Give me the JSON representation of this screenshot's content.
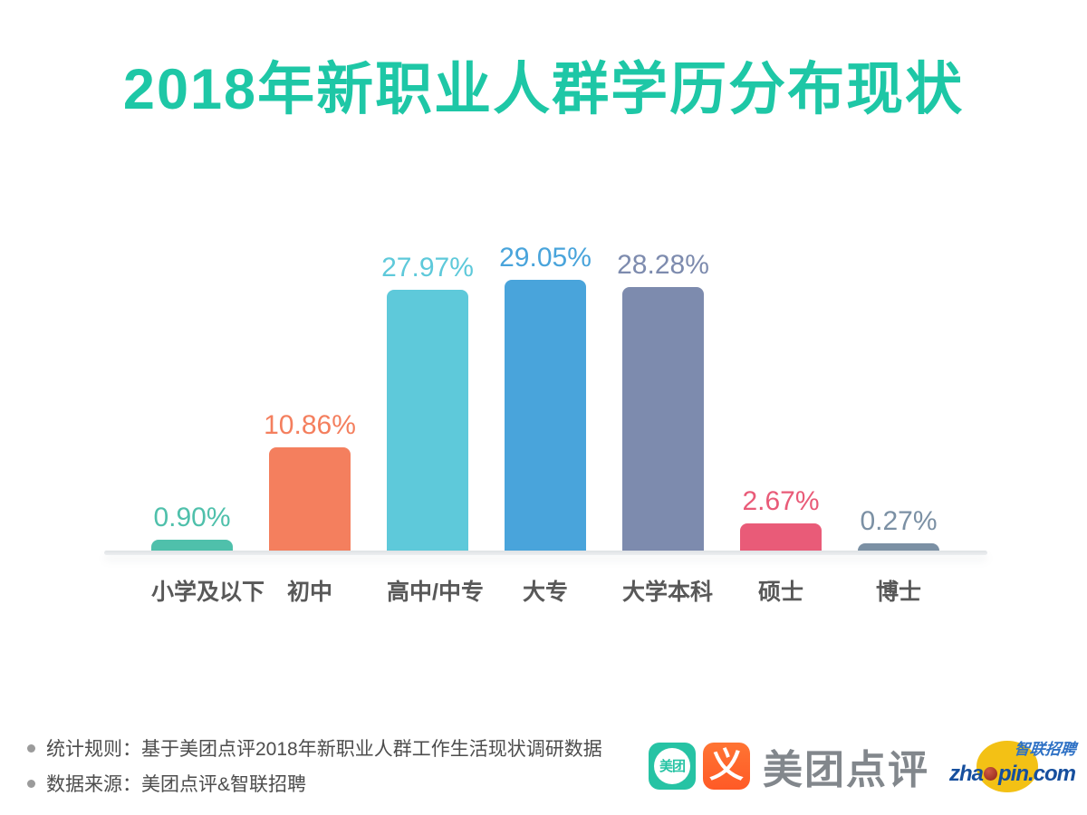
{
  "title": "2018年新职业人群学历分布现状",
  "chart_data": {
    "type": "bar",
    "title": "2018年新职业人群学历分布现状",
    "categories": [
      "小学及以下",
      "初中",
      "高中/中专",
      "大专",
      "大学本科",
      "硕士",
      "博士"
    ],
    "values": [
      0.9,
      10.86,
      27.97,
      29.05,
      28.28,
      2.67,
      0.27
    ],
    "value_labels": [
      "0.90%",
      "10.86%",
      "27.97%",
      "29.05%",
      "28.28%",
      "2.67%",
      "0.27%"
    ],
    "bar_colors": [
      "#4fc0ab",
      "#f47f5e",
      "#5ec9da",
      "#49a4db",
      "#7d8bae",
      "#e95b78",
      "#7b90a4"
    ],
    "xlabel": "",
    "ylabel": "",
    "ylim": [
      0,
      31
    ],
    "grid": false,
    "legend": false,
    "value_label_position": "above-bar",
    "bar_corner": "rounded-top"
  },
  "colors": {
    "title_accent": "#1ec7a6",
    "axis_line": "#e2e4e7",
    "category_label": "#585858",
    "note_text": "#4d4d4d",
    "brand_gray": "#82878c",
    "zhaopin_blue": "#164f9e",
    "zhaopin_yellow": "#f3c115",
    "meituan_teal": "#26c3a4",
    "dianping_orange": "#ff6633"
  },
  "footer": {
    "notes": [
      "统计规则：基于美团点评2018年新职业人群工作生活现状调研数据",
      "数据来源：美团点评&智联招聘"
    ],
    "logos": {
      "meituan_icon_text": "美团",
      "dianping_icon_glyph": "义",
      "brand_text": "美团点评",
      "zhaopin_cn": "智联招聘",
      "zhaopin_url_prefix": "zha",
      "zhaopin_url_suffix": "pin.com"
    }
  }
}
